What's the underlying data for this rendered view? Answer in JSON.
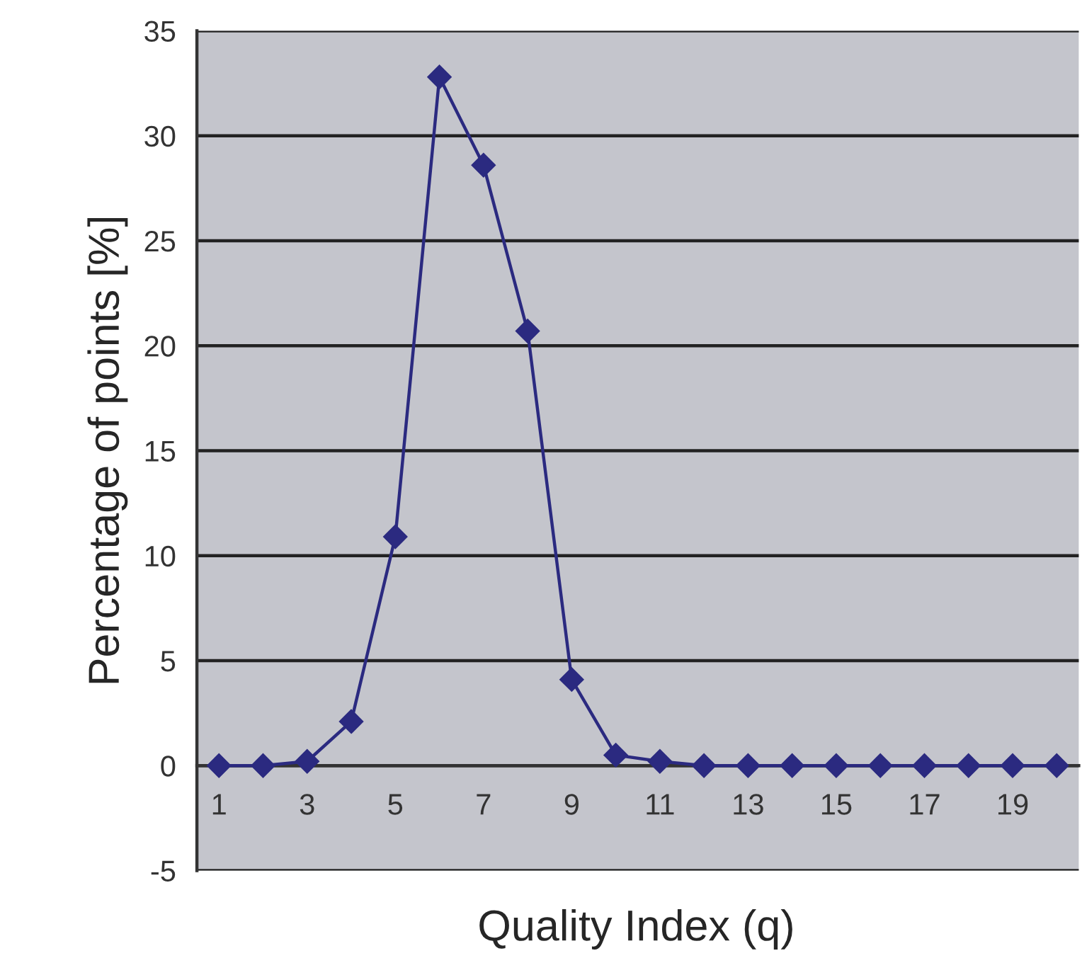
{
  "chart_data": {
    "type": "line",
    "xlabel": "Quality Index (q)",
    "ylabel": "Percentage of points [%]",
    "categories": [
      "1",
      null,
      "3",
      null,
      "5",
      null,
      "7",
      null,
      "9",
      null,
      "11",
      null,
      "13",
      null,
      "15",
      null,
      "17",
      null,
      "19",
      null
    ],
    "series": [
      {
        "color": "#2b2a80",
        "values": [
          0,
          0,
          0.2,
          2.1,
          10.9,
          32.8,
          28.6,
          20.7,
          4.1,
          0.5,
          0.2,
          0,
          0,
          0,
          0,
          0,
          0,
          0,
          0,
          0
        ]
      }
    ],
    "ylim": [
      -5,
      35
    ],
    "yticks": [
      -5,
      0,
      5,
      10,
      15,
      20,
      25,
      30,
      35
    ],
    "grid": "y",
    "marker": "diamond",
    "line_style": "solid"
  }
}
